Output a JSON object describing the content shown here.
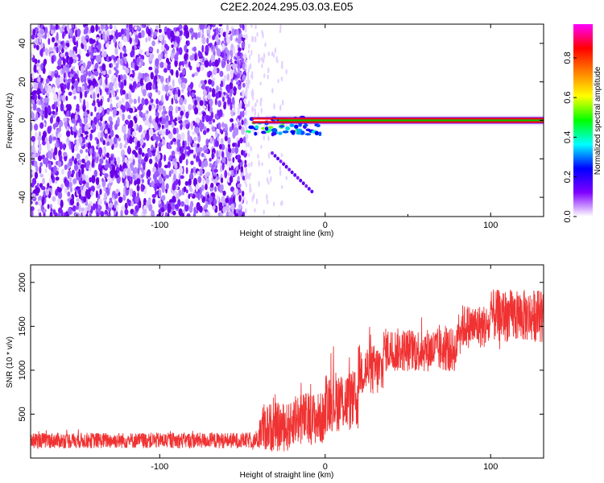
{
  "title": "C2E2.2024.295.03.03.E05",
  "chart_data": [
    {
      "type": "heatmap",
      "xlabel": "Height of straight line (km)",
      "ylabel": "Frequency (Hz)",
      "xlim": [
        -178,
        132
      ],
      "ylim": [
        -50,
        50
      ],
      "xticks": [
        -100,
        0,
        100
      ],
      "yticks": [
        -40,
        -20,
        0,
        20,
        40
      ],
      "colorbar": {
        "label": "Normalized spectral amplitude",
        "range": [
          0,
          0.97
        ],
        "ticks": [
          "0.0",
          "0.2",
          "0.4",
          "0.6",
          "0.8"
        ],
        "tick_values": [
          0.0,
          0.2,
          0.4,
          0.6,
          0.8
        ],
        "colors": [
          "#ffffff",
          "#7f00ff",
          "#0000ff",
          "#00ffff",
          "#00ff00",
          "#ffff00",
          "#ff8000",
          "#ff0000",
          "#ff00ff"
        ]
      },
      "noise_region_x": [
        -178,
        -48
      ],
      "signal_band": {
        "x": [
          -48,
          132
        ],
        "frequency": 0
      },
      "spur": {
        "x": [
          -32,
          -8
        ],
        "frequency": [
          -17,
          -37
        ]
      }
    },
    {
      "type": "line",
      "xlabel": "Height of straight line (km)",
      "ylabel": "SNR (10 * v/v)",
      "xlim": [
        -178,
        132
      ],
      "ylim": [
        0,
        2200
      ],
      "xticks": [
        -100,
        0,
        100
      ],
      "yticks": [
        500,
        1000,
        1500,
        2000
      ],
      "color": "#f03232",
      "segments": [
        {
          "x": [
            -178,
            -40
          ],
          "mean": 200,
          "spread": 90
        },
        {
          "x": [
            -40,
            -20
          ],
          "mean": 350,
          "spread": 280
        },
        {
          "x": [
            -20,
            0
          ],
          "mean": 450,
          "spread": 300
        },
        {
          "x": [
            0,
            20
          ],
          "mean": 650,
          "spread": 350
        },
        {
          "x": [
            20,
            35
          ],
          "mean": 1000,
          "spread": 300
        },
        {
          "x": [
            35,
            80
          ],
          "mean": 1230,
          "spread": 250
        },
        {
          "x": [
            80,
            100
          ],
          "mean": 1500,
          "spread": 250
        },
        {
          "x": [
            100,
            132
          ],
          "mean": 1620,
          "spread": 300
        }
      ]
    }
  ]
}
